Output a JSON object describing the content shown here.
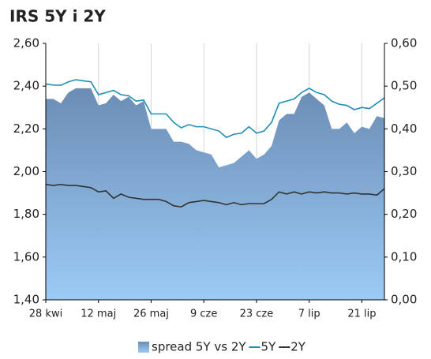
{
  "chart_data": {
    "type": "line-area",
    "title": "IRS 5Y i 2Y",
    "x": [
      0,
      2,
      4,
      6,
      8,
      10,
      12,
      14,
      16,
      18,
      20,
      22,
      24,
      26,
      28,
      30,
      32,
      34,
      36,
      38,
      40,
      42,
      44,
      46,
      48,
      50,
      52,
      54,
      56,
      58,
      60,
      62,
      64,
      66,
      68,
      70,
      72,
      74,
      76,
      78,
      80,
      82,
      84,
      86,
      88,
      90
    ],
    "xlim": [
      0,
      90
    ],
    "xticks": [
      {
        "value": 0,
        "label": "28 kwi"
      },
      {
        "value": 14,
        "label": "12 maj"
      },
      {
        "value": 28,
        "label": "26 maj"
      },
      {
        "value": 42,
        "label": "9 cze"
      },
      {
        "value": 56,
        "label": "23 cze"
      },
      {
        "value": 70,
        "label": "7 lip"
      },
      {
        "value": 84,
        "label": "21 lip"
      }
    ],
    "ylim": [
      1.4,
      2.6
    ],
    "yticks": [
      {
        "value": 1.4,
        "label": "1,40"
      },
      {
        "value": 1.6,
        "label": "1,60"
      },
      {
        "value": 1.8,
        "label": "1,80"
      },
      {
        "value": 2.0,
        "label": "2,00"
      },
      {
        "value": 2.2,
        "label": "2,20"
      },
      {
        "value": 2.4,
        "label": "2,40"
      },
      {
        "value": 2.6,
        "label": "2,60"
      }
    ],
    "y2lim": [
      0,
      0.6
    ],
    "y2ticks": [
      {
        "value": 0,
        "label": "0,00"
      },
      {
        "value": 0.1,
        "label": "0,10"
      },
      {
        "value": 0.2,
        "label": "0,20"
      },
      {
        "value": 0.3,
        "label": "0,30"
      },
      {
        "value": 0.4,
        "label": "0,40"
      },
      {
        "value": 0.5,
        "label": "0,50"
      },
      {
        "value": 0.6,
        "label": "0,60"
      }
    ],
    "series": [
      {
        "name": "spread 5Y vs 2Y",
        "kind": "area",
        "axis": "y2",
        "color": "#7b9cc4",
        "values": [
          0.47,
          0.47,
          0.46,
          0.485,
          0.495,
          0.495,
          0.495,
          0.455,
          0.46,
          0.48,
          0.465,
          0.475,
          0.455,
          0.465,
          0.4,
          0.4,
          0.4,
          0.37,
          0.37,
          0.365,
          0.35,
          0.345,
          0.34,
          0.31,
          0.315,
          0.32,
          0.335,
          0.35,
          0.33,
          0.34,
          0.36,
          0.42,
          0.435,
          0.435,
          0.475,
          0.485,
          0.47,
          0.455,
          0.4,
          0.4,
          0.415,
          0.39,
          0.405,
          0.4,
          0.43,
          0.425
        ]
      },
      {
        "name": "5Y",
        "kind": "line",
        "color": "#1e8fb5",
        "values": [
          2.41,
          2.405,
          2.404,
          2.42,
          2.43,
          2.425,
          2.42,
          2.36,
          2.37,
          2.38,
          2.36,
          2.355,
          2.33,
          2.335,
          2.27,
          2.27,
          2.27,
          2.23,
          2.205,
          2.22,
          2.21,
          2.21,
          2.2,
          2.19,
          2.16,
          2.175,
          2.18,
          2.21,
          2.18,
          2.19,
          2.23,
          2.32,
          2.33,
          2.34,
          2.37,
          2.39,
          2.37,
          2.36,
          2.33,
          2.315,
          2.31,
          2.29,
          2.3,
          2.295,
          2.32,
          2.345
        ]
      },
      {
        "name": "2Y",
        "kind": "line",
        "color": "#333333",
        "values": [
          1.94,
          1.935,
          1.94,
          1.935,
          1.935,
          1.93,
          1.925,
          1.905,
          1.91,
          1.875,
          1.895,
          1.88,
          1.875,
          1.87,
          1.87,
          1.87,
          1.86,
          1.84,
          1.835,
          1.855,
          1.86,
          1.865,
          1.86,
          1.855,
          1.845,
          1.855,
          1.845,
          1.85,
          1.85,
          1.85,
          1.87,
          1.905,
          1.895,
          1.905,
          1.895,
          1.905,
          1.9,
          1.905,
          1.9,
          1.9,
          1.895,
          1.9,
          1.895,
          1.895,
          1.89,
          1.92
        ]
      }
    ]
  }
}
